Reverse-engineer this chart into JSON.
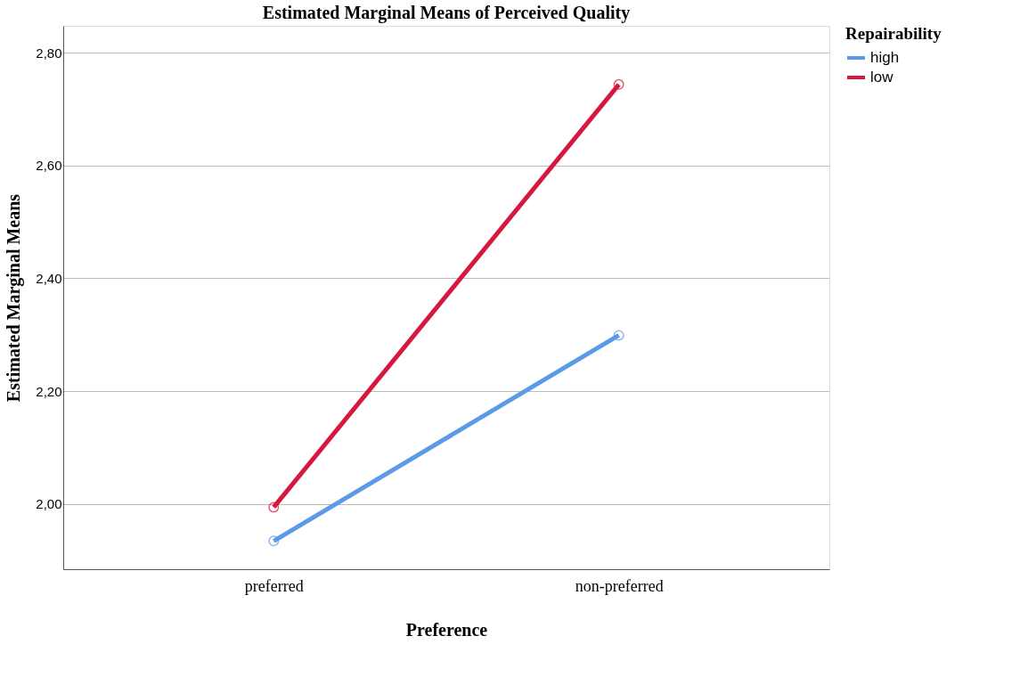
{
  "chart_data": {
    "type": "line",
    "title": "Estimated Marginal Means of Perceived Quality",
    "xlabel": "Preference",
    "ylabel": "Estimated Marginal Means",
    "legend_title": "Repairability",
    "categories": [
      "preferred",
      "non-preferred"
    ],
    "series": [
      {
        "name": "high",
        "color": "#5b9be6",
        "values": [
          1.934,
          2.299
        ]
      },
      {
        "name": "low",
        "color": "#d6173f",
        "values": [
          1.994,
          2.744
        ]
      }
    ],
    "ylim": [
      1.884,
      2.848
    ],
    "yticks": [
      {
        "value": 2.0,
        "label": "2,00"
      },
      {
        "value": 2.2,
        "label": "2,20"
      },
      {
        "value": 2.4,
        "label": "2,40"
      },
      {
        "value": 2.6,
        "label": "2,60"
      },
      {
        "value": 2.8,
        "label": "2,80"
      }
    ],
    "grid": "y",
    "legend": "top right",
    "marker": "circle",
    "line_style": "solid"
  }
}
